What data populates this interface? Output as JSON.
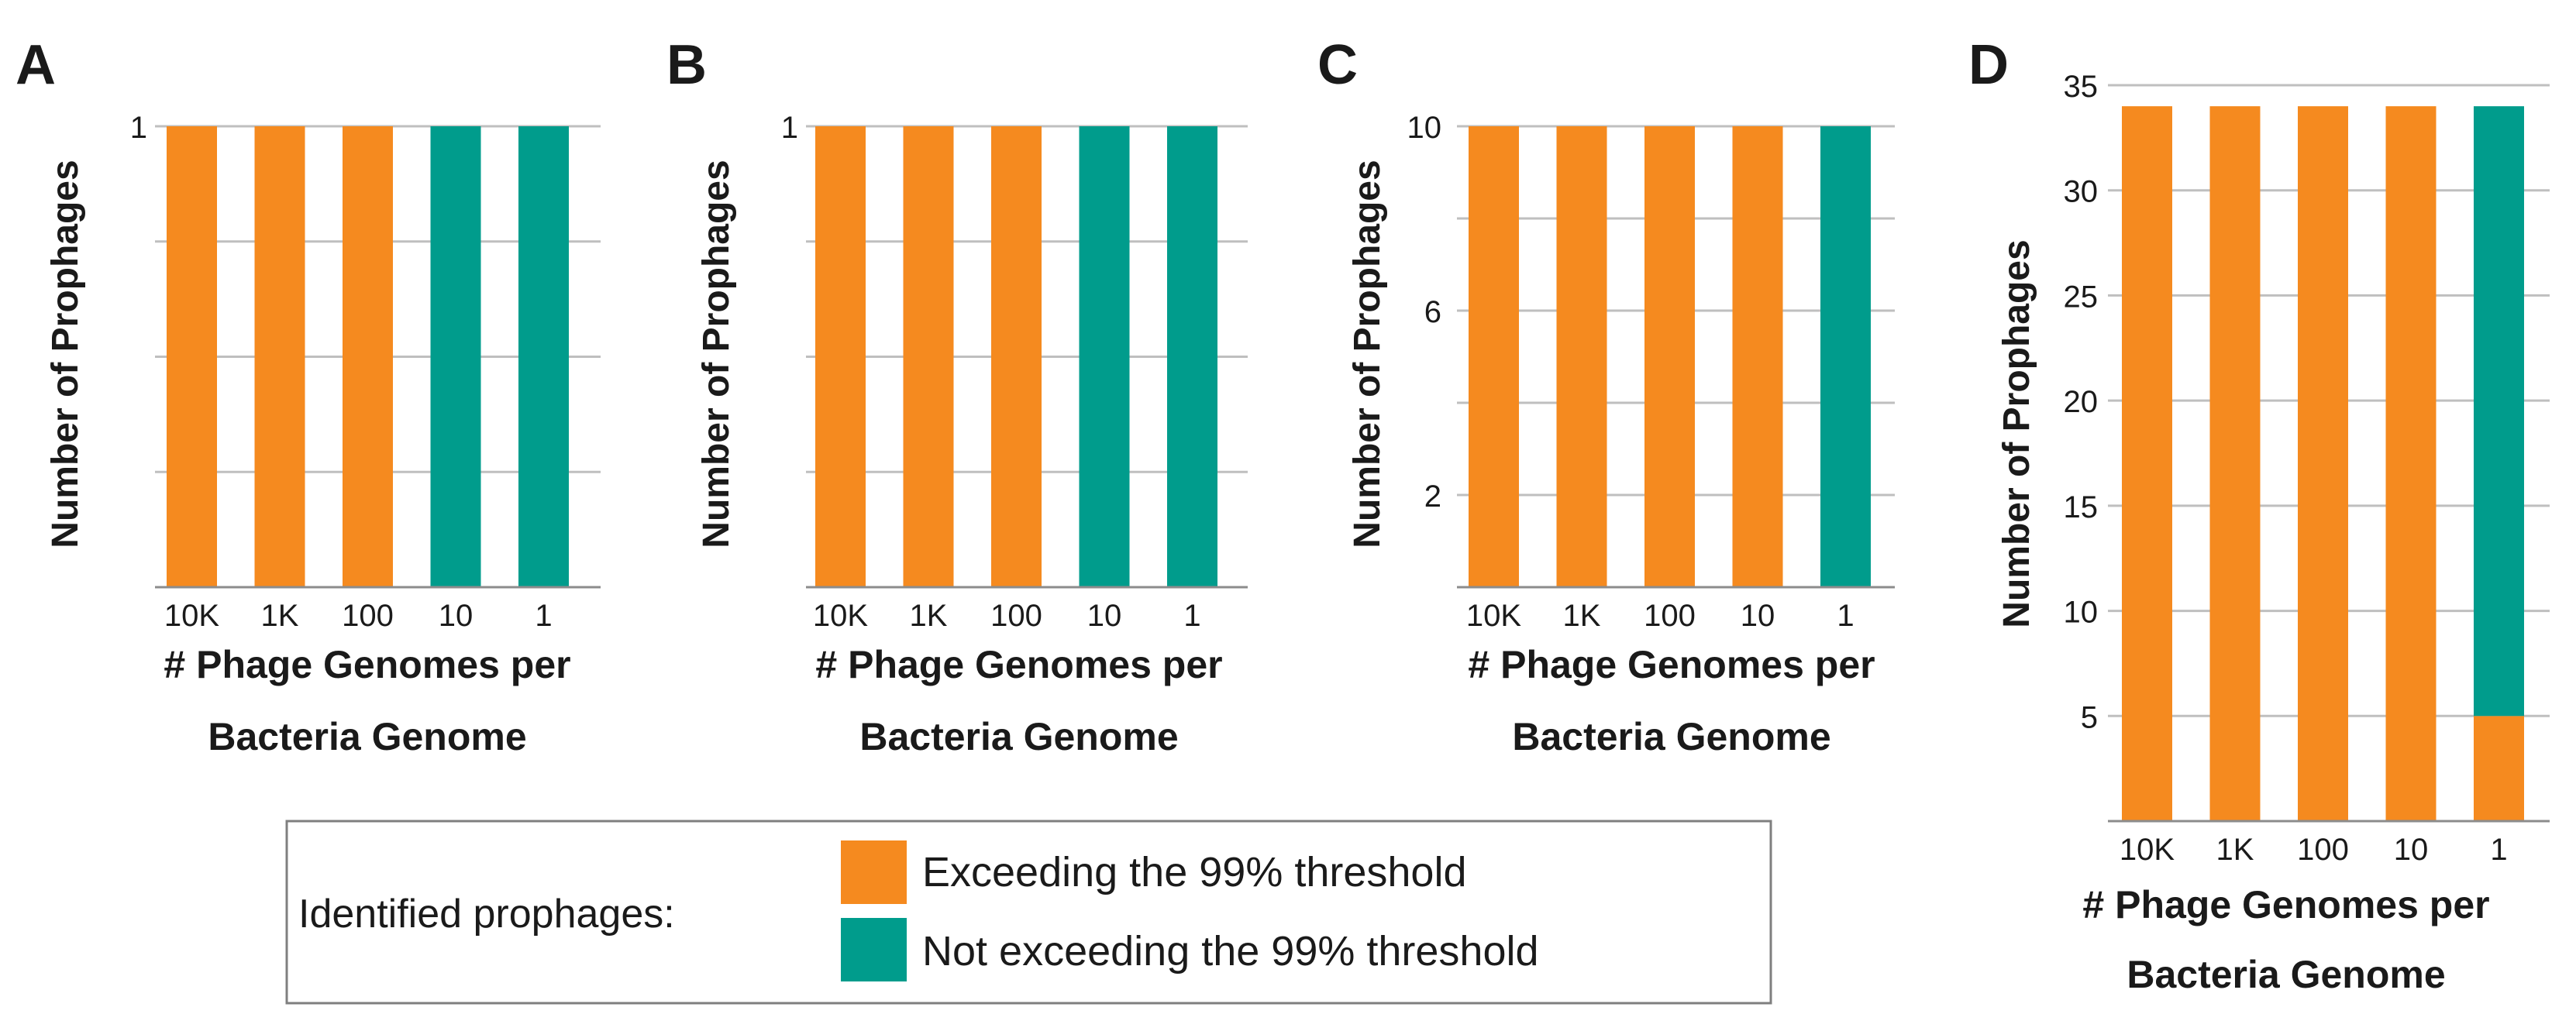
{
  "colors": {
    "exceeding": "#F58A1F",
    "not_exceeding": "#009C8C",
    "grid": "#BFBFBF",
    "axis": "#8C8C8C",
    "text": "#1A1A1A"
  },
  "legend": {
    "title": "Identified prophages:",
    "items": [
      {
        "label": "Exceeding the 99% threshold",
        "color": "#F58A1F"
      },
      {
        "label": "Not exceeding the 99% threshold",
        "color": "#009C8C"
      }
    ]
  },
  "chart_data": [
    {
      "panel": "A",
      "type": "bar",
      "stacked": true,
      "categories": [
        "10K",
        "1K",
        "100",
        "10",
        "1"
      ],
      "series": [
        {
          "name": "Exceeding the 99% threshold",
          "values": [
            1,
            1,
            1,
            0,
            0
          ]
        },
        {
          "name": "Not exceeding the 99% threshold",
          "values": [
            0,
            0,
            0,
            1,
            1
          ]
        }
      ],
      "ylabel": "Number of Prophages",
      "xlabel_lines": [
        "# Phage Genomes per",
        "Bacteria Genome"
      ],
      "ylim": [
        0,
        1
      ],
      "gridlines": [
        0.25,
        0.5,
        0.75,
        1
      ],
      "yticks": [
        {
          "value": 1,
          "label": "1"
        }
      ]
    },
    {
      "panel": "B",
      "type": "bar",
      "stacked": true,
      "categories": [
        "10K",
        "1K",
        "100",
        "10",
        "1"
      ],
      "series": [
        {
          "name": "Exceeding the 99% threshold",
          "values": [
            1,
            1,
            1,
            0,
            0
          ]
        },
        {
          "name": "Not exceeding the 99% threshold",
          "values": [
            0,
            0,
            0,
            1,
            1
          ]
        }
      ],
      "ylabel": "Number of Prophages",
      "xlabel_lines": [
        "# Phage Genomes per",
        "Bacteria Genome"
      ],
      "ylim": [
        0,
        1
      ],
      "gridlines": [
        0.25,
        0.5,
        0.75,
        1
      ],
      "yticks": [
        {
          "value": 1,
          "label": "1"
        }
      ]
    },
    {
      "panel": "C",
      "type": "bar",
      "stacked": true,
      "categories": [
        "10K",
        "1K",
        "100",
        "10",
        "1"
      ],
      "series": [
        {
          "name": "Exceeding the 99% threshold",
          "values": [
            10,
            10,
            10,
            10,
            0
          ]
        },
        {
          "name": "Not exceeding the 99% threshold",
          "values": [
            0,
            0,
            0,
            0,
            10
          ]
        }
      ],
      "ylabel": "Number of Prophages",
      "xlabel_lines": [
        "# Phage Genomes per",
        "Bacteria Genome"
      ],
      "ylim": [
        0,
        10
      ],
      "gridlines": [
        2,
        4,
        6,
        8,
        10
      ],
      "yticks": [
        {
          "value": 2,
          "label": "2"
        },
        {
          "value": 6,
          "label": "6"
        },
        {
          "value": 10,
          "label": "10"
        }
      ]
    },
    {
      "panel": "D",
      "type": "bar",
      "stacked": true,
      "categories": [
        "10K",
        "1K",
        "100",
        "10",
        "1"
      ],
      "series": [
        {
          "name": "Exceeding the 99% threshold",
          "values": [
            34,
            34,
            34,
            34,
            5
          ]
        },
        {
          "name": "Not exceeding the 99% threshold",
          "values": [
            0,
            0,
            0,
            0,
            29
          ]
        }
      ],
      "ylabel": "Number of Prophages",
      "xlabel_lines": [
        "# Phage Genomes per",
        "Bacteria Genome"
      ],
      "ylim": [
        0,
        35
      ],
      "gridlines": [
        5,
        10,
        15,
        20,
        25,
        30,
        35
      ],
      "yticks": [
        {
          "value": 5,
          "label": "5"
        },
        {
          "value": 10,
          "label": "10"
        },
        {
          "value": 15,
          "label": "15"
        },
        {
          "value": 20,
          "label": "20"
        },
        {
          "value": 25,
          "label": "25"
        },
        {
          "value": 30,
          "label": "30"
        },
        {
          "value": 35,
          "label": "35"
        }
      ]
    }
  ]
}
